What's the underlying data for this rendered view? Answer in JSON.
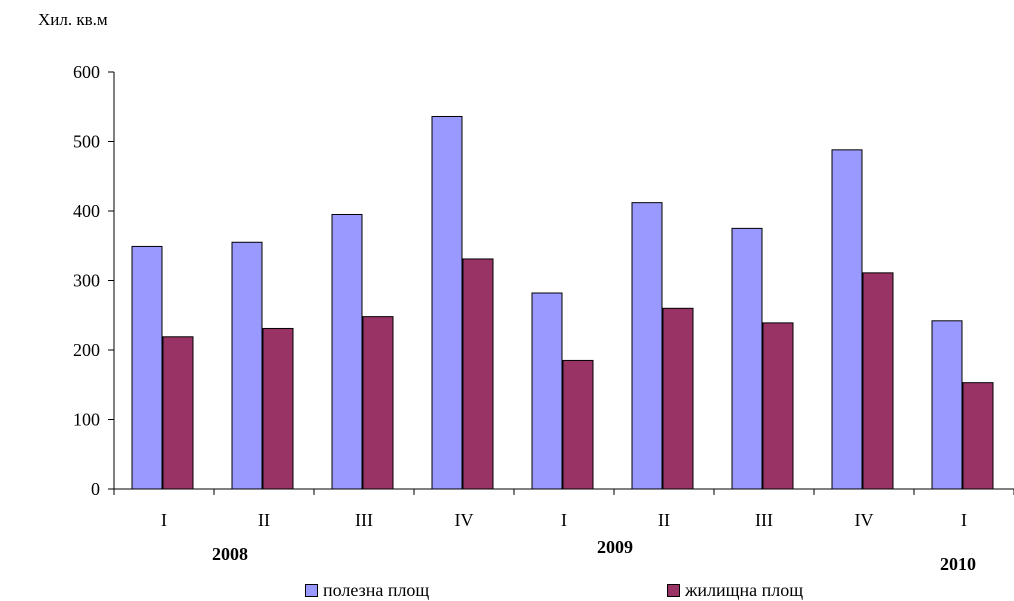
{
  "chart_data": {
    "type": "bar",
    "unit_label": "Хил. кв.м",
    "categories": [
      "I",
      "II",
      "III",
      "IV",
      "I",
      "II",
      "III",
      "IV",
      "I"
    ],
    "year_groups": [
      {
        "label": "2008"
      },
      {
        "label": "2009"
      },
      {
        "label": "2010"
      }
    ],
    "series": [
      {
        "name": "полезна площ",
        "color": "#9999ff",
        "values": [
          349,
          355,
          395,
          536,
          282,
          412,
          375,
          488,
          242
        ]
      },
      {
        "name": "жилищна площ",
        "color": "#993366",
        "values": [
          219,
          231,
          248,
          331,
          185,
          260,
          239,
          311,
          153
        ]
      }
    ],
    "ylim": [
      0,
      600
    ],
    "yticks": [
      0,
      100,
      200,
      300,
      400,
      500,
      600
    ],
    "grid": false,
    "legend_position": "bottom"
  }
}
